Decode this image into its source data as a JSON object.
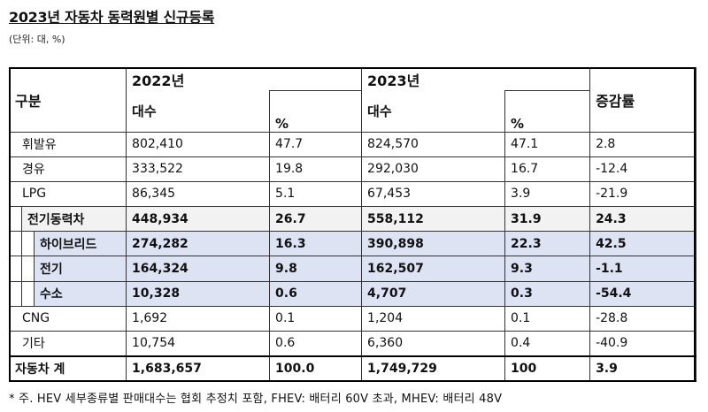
{
  "title": "2023년 자동차 동력원별 신규등록",
  "unit_note": "(단위: 대, %)",
  "header": {
    "category": "구분",
    "year_2022": "2022년",
    "year_2023": "2023년",
    "count": "대수",
    "pct": "%",
    "growth": "증감률"
  },
  "rows": [
    {
      "label": "휘발유",
      "c22": "802,410",
      "p22": "47.7",
      "c23": "824,570",
      "p23": "47.1",
      "g": "2.8"
    },
    {
      "label": "경유",
      "c22": "333,522",
      "p22": "19.8",
      "c23": "292,030",
      "p23": "16.7",
      "g": "-12.4"
    },
    {
      "label": "LPG",
      "c22": "86,345",
      "p22": "5.1",
      "c23": "67,453",
      "p23": "3.9",
      "g": "-21.9"
    },
    {
      "label": "전기동력차",
      "c22": "448,934",
      "p22": "26.7",
      "c23": "558,112",
      "p23": "31.9",
      "g": "24.3"
    },
    {
      "label": "하이브리드",
      "c22": "274,282",
      "p22": "16.3",
      "c23": "390,898",
      "p23": "22.3",
      "g": "42.5"
    },
    {
      "label": "전기",
      "c22": "164,324",
      "p22": "9.8",
      "c23": "162,507",
      "p23": "9.3",
      "g": "-1.1"
    },
    {
      "label": "수소",
      "c22": "10,328",
      "p22": "0.6",
      "c23": "4,707",
      "p23": "0.3",
      "g": "-54.4"
    },
    {
      "label": "CNG",
      "c22": "1,692",
      "p22": "0.1",
      "c23": "1,204",
      "p23": "0.1",
      "g": "-28.8"
    },
    {
      "label": "기타",
      "c22": "10,754",
      "p22": "0.6",
      "c23": "6,360",
      "p23": "0.4",
      "g": "-40.9"
    },
    {
      "label": "자동차 계",
      "c22": "1,683,657",
      "p22": "100.0",
      "c23": "1,749,729",
      "p23": "100",
      "g": "3.9"
    }
  ],
  "footnote": "* 주. HEV 세부종류별 판매대수는 협회 추정치 포함, FHEV: 배터리 60V 초과, MHEV: 배터리 48V"
}
